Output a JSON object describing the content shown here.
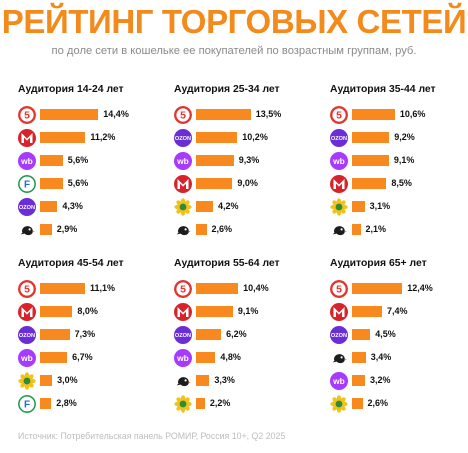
{
  "title": "РЕЙТИНГ ТОРГОВЫХ СЕТЕЙ",
  "subtitle": "по доле сети в кошельке ее покупателей по возрастным группам, руб.",
  "source": "Источник: Потребительская панель РОМИР, Россия 10+, Q2 2025",
  "colors": {
    "accent": "#f7891f",
    "title": "#f28a1c"
  },
  "retailer_icons": {
    "pyaterochka": "pyaterochka-logo-icon",
    "magnit": "magnit-logo-icon",
    "wildberries": "wildberries-logo-icon",
    "fixprice": "fix-price-logo-icon",
    "ozon": "ozon-logo-icon",
    "vkusvill": "vkusvill-logo-icon",
    "chizhik": "chizhik-logo-icon"
  },
  "chart_data": [
    {
      "type": "bar",
      "title": "Аудитория 14-24 лет",
      "categories": [
        "pyaterochka",
        "magnit",
        "wildberries",
        "fixprice",
        "ozon",
        "chizhik"
      ],
      "values": [
        14.4,
        11.2,
        5.6,
        5.6,
        4.3,
        2.9
      ],
      "labels": [
        "14,4%",
        "11,2%",
        "5,6%",
        "5,6%",
        "4,3%",
        "2,9%"
      ]
    },
    {
      "type": "bar",
      "title": "Аудитория 25-34 лет",
      "categories": [
        "pyaterochka",
        "ozon",
        "wildberries",
        "magnit",
        "vkusvill",
        "chizhik"
      ],
      "values": [
        13.5,
        10.2,
        9.3,
        9.0,
        4.2,
        2.6
      ],
      "labels": [
        "13,5%",
        "10,2%",
        "9,3%",
        "9,0%",
        "4,2%",
        "2,6%"
      ]
    },
    {
      "type": "bar",
      "title": "Аудитория 35-44 лет",
      "categories": [
        "pyaterochka",
        "ozon",
        "wildberries",
        "magnit",
        "vkusvill",
        "chizhik"
      ],
      "values": [
        10.6,
        9.2,
        9.1,
        8.5,
        3.1,
        2.1
      ],
      "labels": [
        "10,6%",
        "9,2%",
        "9,1%",
        "8,5%",
        "3,1%",
        "2,1%"
      ]
    },
    {
      "type": "bar",
      "title": "Аудитория 45-54 лет",
      "categories": [
        "pyaterochka",
        "magnit",
        "ozon",
        "wildberries",
        "vkusvill",
        "fixprice"
      ],
      "values": [
        11.1,
        8.0,
        7.3,
        6.7,
        3.0,
        2.8
      ],
      "labels": [
        "11,1%",
        "8,0%",
        "7,3%",
        "6,7%",
        "3,0%",
        "2,8%"
      ]
    },
    {
      "type": "bar",
      "title": "Аудитория 55-64 лет",
      "categories": [
        "pyaterochka",
        "magnit",
        "ozon",
        "wildberries",
        "chizhik",
        "vkusvill"
      ],
      "values": [
        10.4,
        9.1,
        6.2,
        4.8,
        3.3,
        2.2
      ],
      "labels": [
        "10,4%",
        "9,1%",
        "6,2%",
        "4,8%",
        "3,3%",
        "2,2%"
      ]
    },
    {
      "type": "bar",
      "title": "Аудитория 65+ лет",
      "categories": [
        "pyaterochka",
        "magnit",
        "ozon",
        "chizhik",
        "wildberries",
        "vkusvill"
      ],
      "values": [
        12.4,
        7.4,
        4.5,
        3.4,
        3.2,
        2.6
      ],
      "labels": [
        "12,4%",
        "7,4%",
        "4,5%",
        "3,4%",
        "3,2%",
        "2,6%"
      ]
    }
  ]
}
